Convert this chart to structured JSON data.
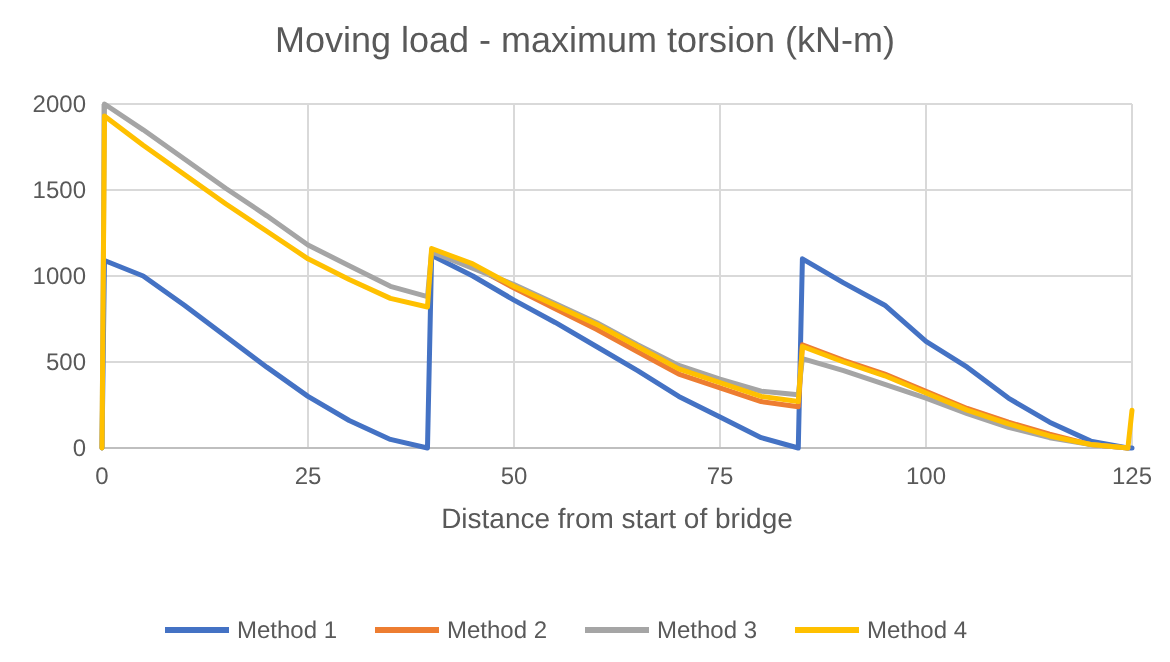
{
  "chart_data": {
    "type": "line",
    "title": "Moving load - maximum torsion (kN-m)",
    "xlabel": "Distance from start of bridge",
    "xlim": [
      0,
      125
    ],
    "xticks": [
      0,
      25,
      50,
      75,
      100,
      125
    ],
    "ylim": [
      0,
      2000
    ],
    "yticks": [
      0,
      500,
      1000,
      1500,
      2000
    ],
    "grid": true,
    "legend": "bottom",
    "marker": "none",
    "line_style": "solid",
    "series": [
      {
        "name": "Method 1",
        "color": "#4472c4",
        "x": [
          0,
          0.3,
          5,
          10,
          15,
          20,
          25,
          30,
          35,
          39.5,
          40,
          45,
          50,
          55,
          60,
          65,
          70,
          75,
          80,
          84.5,
          85,
          90,
          95,
          100,
          105,
          110,
          115,
          120,
          124.5,
          125
        ],
        "values": [
          0,
          1090,
          1000,
          830,
          650,
          470,
          300,
          160,
          50,
          0,
          1120,
          1000,
          860,
          730,
          590,
          450,
          300,
          180,
          60,
          0,
          1100,
          960,
          830,
          620,
          470,
          290,
          150,
          40,
          0,
          0
        ]
      },
      {
        "name": "Method 2",
        "color": "#ed7d31",
        "x": [
          40,
          45,
          50,
          55,
          60,
          65,
          70,
          75,
          80,
          84.5,
          85,
          90,
          95,
          100,
          105,
          110,
          115,
          120,
          124.5
        ],
        "values": [
          1150,
          1060,
          930,
          810,
          690,
          560,
          430,
          350,
          270,
          240,
          600,
          510,
          430,
          330,
          230,
          150,
          80,
          20,
          0
        ]
      },
      {
        "name": "Method 3",
        "color": "#a5a5a5",
        "x": [
          0,
          0.3,
          5,
          10,
          15,
          20,
          25,
          30,
          35,
          39.5,
          40,
          50,
          55,
          60,
          65,
          70,
          75,
          80,
          84.5,
          85,
          90,
          95,
          100,
          105,
          110,
          115,
          120,
          124.5
        ],
        "values": [
          0,
          2000,
          1850,
          1680,
          1510,
          1350,
          1180,
          1060,
          940,
          880,
          1140,
          950,
          840,
          730,
          600,
          480,
          400,
          330,
          310,
          520,
          450,
          370,
          290,
          200,
          120,
          60,
          20,
          0
        ]
      },
      {
        "name": "Method 4",
        "color": "#ffc000",
        "x": [
          0,
          0.3,
          5,
          10,
          15,
          20,
          25,
          30,
          35,
          39.5,
          40,
          45,
          50,
          55,
          60,
          65,
          70,
          75,
          80,
          84.5,
          85,
          90,
          95,
          100,
          105,
          110,
          115,
          120,
          124.5,
          125
        ],
        "values": [
          0,
          1930,
          1760,
          1590,
          1420,
          1260,
          1100,
          980,
          870,
          820,
          1160,
          1070,
          940,
          830,
          720,
          590,
          460,
          380,
          300,
          270,
          590,
          500,
          420,
          320,
          220,
          140,
          70,
          20,
          0,
          220
        ]
      }
    ]
  }
}
